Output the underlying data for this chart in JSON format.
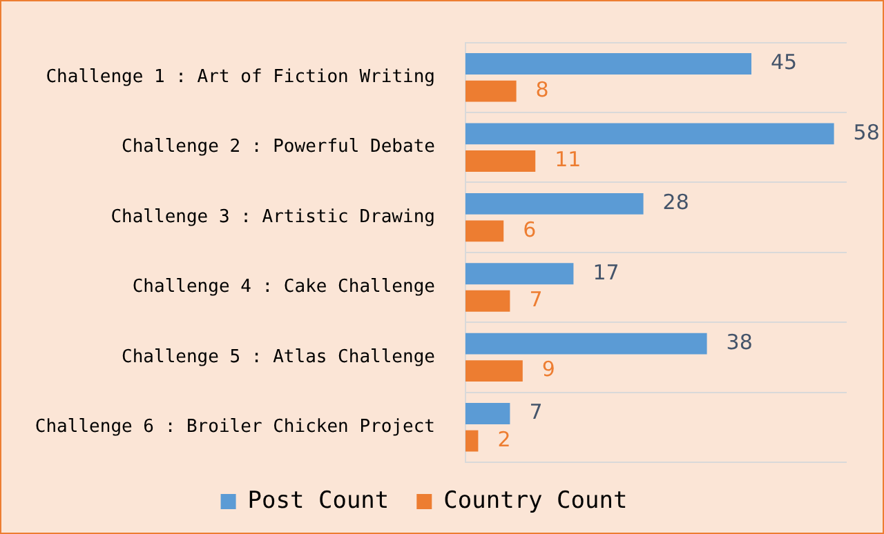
{
  "chart_data": {
    "type": "bar",
    "orientation": "horizontal",
    "categories": [
      "Challenge 1 : Art of Fiction Writing",
      "Challenge 2 : Powerful Debate",
      "Challenge 3 : Artistic Drawing",
      "Challenge 4 : Cake Challenge",
      "Challenge 5 : Atlas Challenge",
      "Challenge 6 : Broiler Chicken Project"
    ],
    "series": [
      {
        "name": "Post Count",
        "color": "#5b9bd5",
        "values": [
          45,
          58,
          28,
          17,
          38,
          7
        ]
      },
      {
        "name": "Country Count",
        "color": "#ed7d31",
        "values": [
          8,
          11,
          6,
          7,
          9,
          2
        ]
      }
    ],
    "xlim": [
      0,
      60
    ],
    "data_labels": true,
    "grid": "y",
    "legend": "bottom",
    "tick_labels": "y"
  }
}
